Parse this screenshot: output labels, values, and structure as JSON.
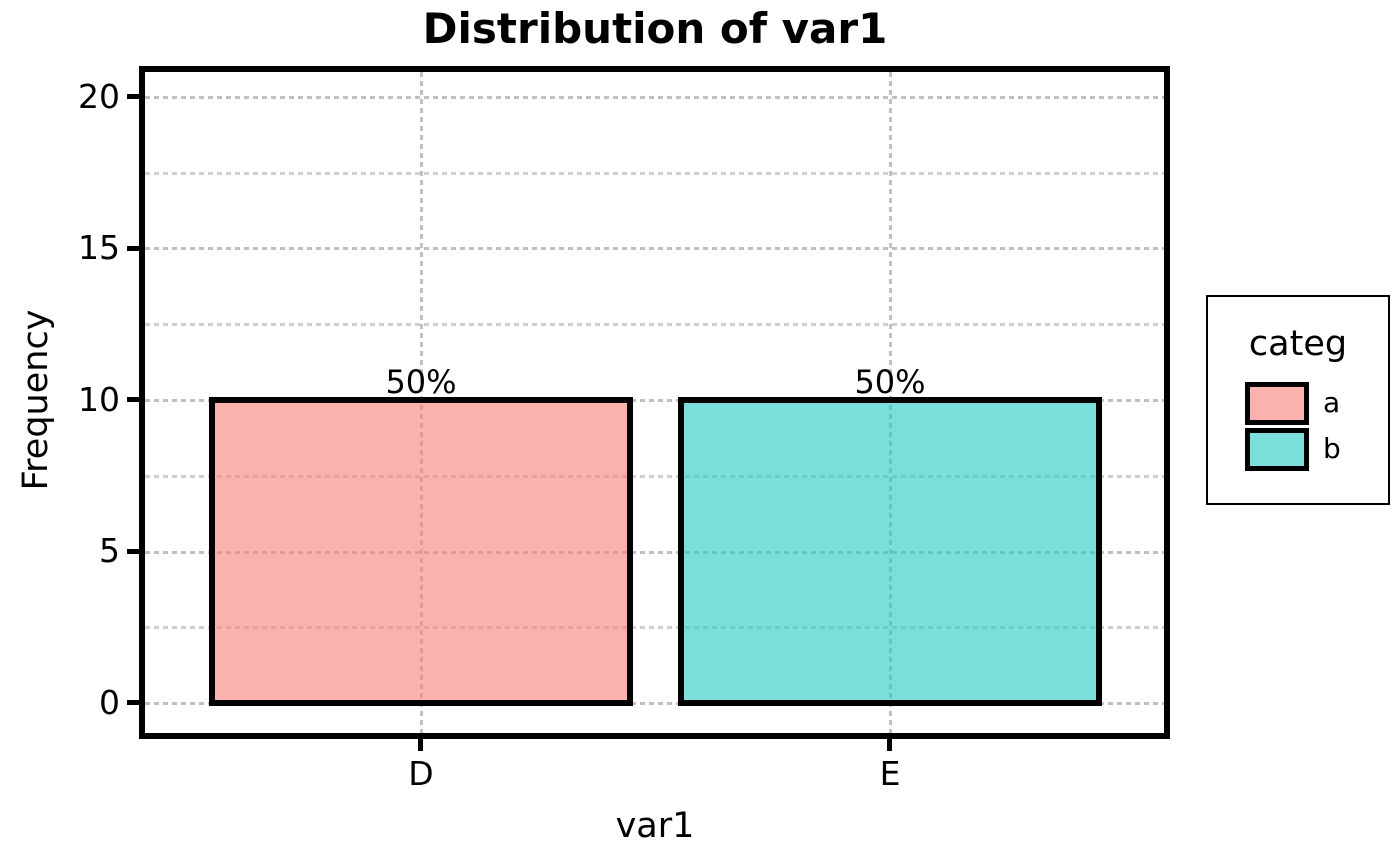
{
  "chart_data": {
    "type": "bar",
    "title": "Distribution of var1",
    "xlabel": "var1",
    "ylabel": "Frequency",
    "categories": [
      "D",
      "E"
    ],
    "values": [
      10,
      10
    ],
    "bar_labels": [
      "50%",
      "50%"
    ],
    "bar_series": [
      "a",
      "b"
    ],
    "yticks": [
      0,
      5,
      10,
      15,
      20
    ],
    "ylim": [
      0,
      21
    ],
    "grid": {
      "style": "dashed",
      "color": "#C0C0C0",
      "horizontal": "major every 5 and minor every 2.5",
      "vertical": "at each category center",
      "drawn_under_translucent_bars": true
    },
    "legend": {
      "title": "categ",
      "position": "right",
      "entries": [
        "a",
        "b"
      ]
    },
    "colors": {
      "bar_a_fill_on_white": "#FAB6B1",
      "bar_b_fill_on_white": "#7EDFDB",
      "bar_edge": "#000000",
      "spines": "#000000",
      "background": "#FFFFFF"
    }
  }
}
